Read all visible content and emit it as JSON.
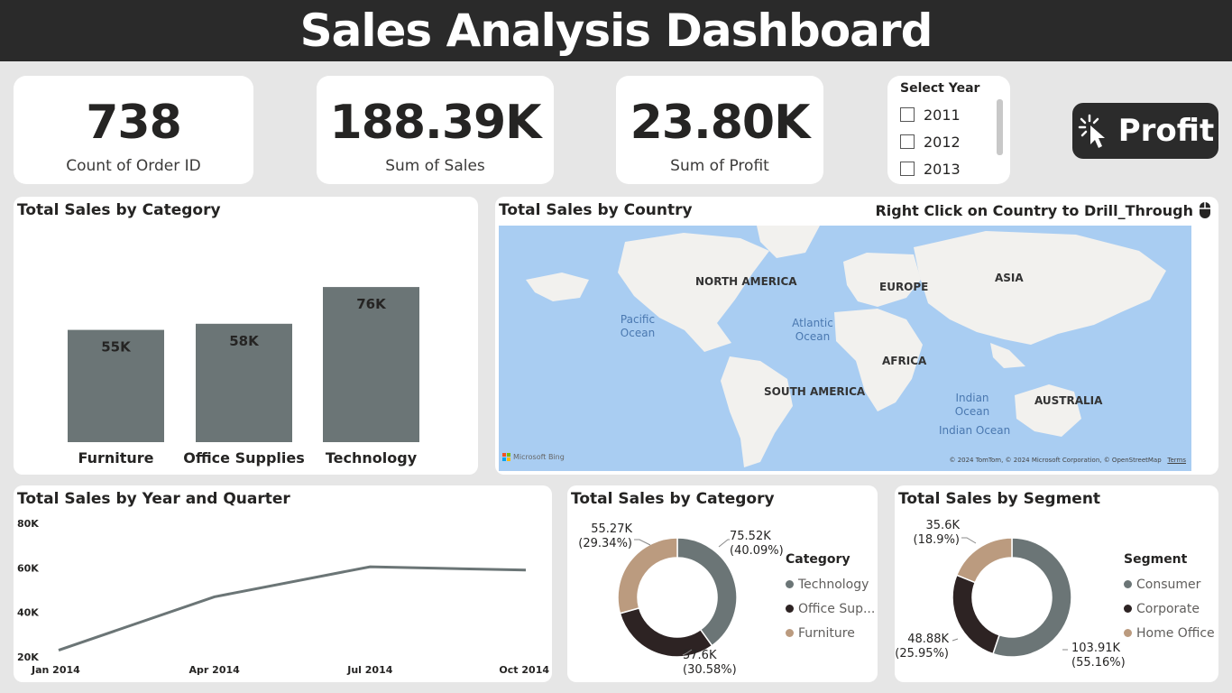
{
  "header": {
    "title": "Sales Analysis Dashboard"
  },
  "kpis": [
    {
      "value": "738",
      "label": "Count of Order ID"
    },
    {
      "value": "188.39K",
      "label": "Sum of Sales"
    },
    {
      "value": "23.80K",
      "label": "Sum of Profit"
    }
  ],
  "slicer": {
    "title": "Select Year",
    "options": [
      "2011",
      "2012",
      "2013"
    ]
  },
  "profit_button": {
    "label": "Profit",
    "icon": "cursor-click-icon"
  },
  "map": {
    "title": "Total Sales by Country",
    "hint": "Right Click on Country to Drill_Through",
    "hint_icon": "mouse-icon",
    "continents": [
      "NORTH AMERICA",
      "SOUTH AMERICA",
      "EUROPE",
      "AFRICA",
      "ASIA",
      "AUSTRALIA"
    ],
    "oceans": [
      "Pacific Ocean",
      "Atlantic Ocean",
      "Indian Ocean",
      "Indian Ocean"
    ],
    "brand": "Microsoft Bing",
    "attribution": "© 2024 TomTom, © 2024 Microsoft Corporation, © OpenStreetMap",
    "terms": "Terms",
    "colors": {
      "water": "#a9cdf2",
      "land": "#f2f1ee",
      "bubble": "#9ea2a4"
    }
  },
  "colors": {
    "accent": "#6b7576",
    "dark": "#2d2323",
    "tan": "#bb9b7f",
    "header": "#2a2a2a"
  },
  "chart_data": [
    {
      "type": "bar",
      "title": "Total Sales by Category",
      "categories": [
        "Furniture",
        "Office Supplies",
        "Technology"
      ],
      "values": [
        55,
        58,
        76
      ],
      "data_labels": [
        "55K",
        "58K",
        "76K"
      ],
      "ylim": [
        0,
        80
      ],
      "grid": false
    },
    {
      "type": "line",
      "title": "Total Sales by Year and Quarter",
      "x": [
        "Jan 2014",
        "Apr 2014",
        "Jul 2014",
        "Oct 2014"
      ],
      "series": [
        {
          "values": [
            23,
            47,
            60.5,
            59
          ]
        }
      ],
      "y_ticks": [
        "80K",
        "60K",
        "40K",
        "20K"
      ],
      "ylim": [
        20,
        80
      ],
      "grid": false
    },
    {
      "type": "pie",
      "title": "Total Sales by Category",
      "legend_title": "Category",
      "legend": [
        "Technology",
        "Office Sup...",
        "Furniture"
      ],
      "slices": [
        {
          "value": 75.52,
          "percent": 40.09,
          "label": "75.52K",
          "pct": "(40.09%)"
        },
        {
          "value": 57.6,
          "percent": 30.58,
          "label": "57.6K",
          "pct": "(30.58%)"
        },
        {
          "value": 55.27,
          "percent": 29.34,
          "label": "55.27K",
          "pct": "(29.34%)"
        }
      ],
      "legend_placement": "right"
    },
    {
      "type": "pie",
      "title": "Total Sales by Segment",
      "legend_title": "Segment",
      "legend": [
        "Consumer",
        "Corporate",
        "Home Office"
      ],
      "slices": [
        {
          "value": 103.91,
          "percent": 55.16,
          "label": "103.91K",
          "pct": "(55.16%)"
        },
        {
          "value": 48.88,
          "percent": 25.95,
          "label": "48.88K",
          "pct": "(25.95%)"
        },
        {
          "value": 35.6,
          "percent": 18.9,
          "label": "35.6K",
          "pct": "(18.9%)"
        }
      ],
      "legend_placement": "right"
    }
  ]
}
